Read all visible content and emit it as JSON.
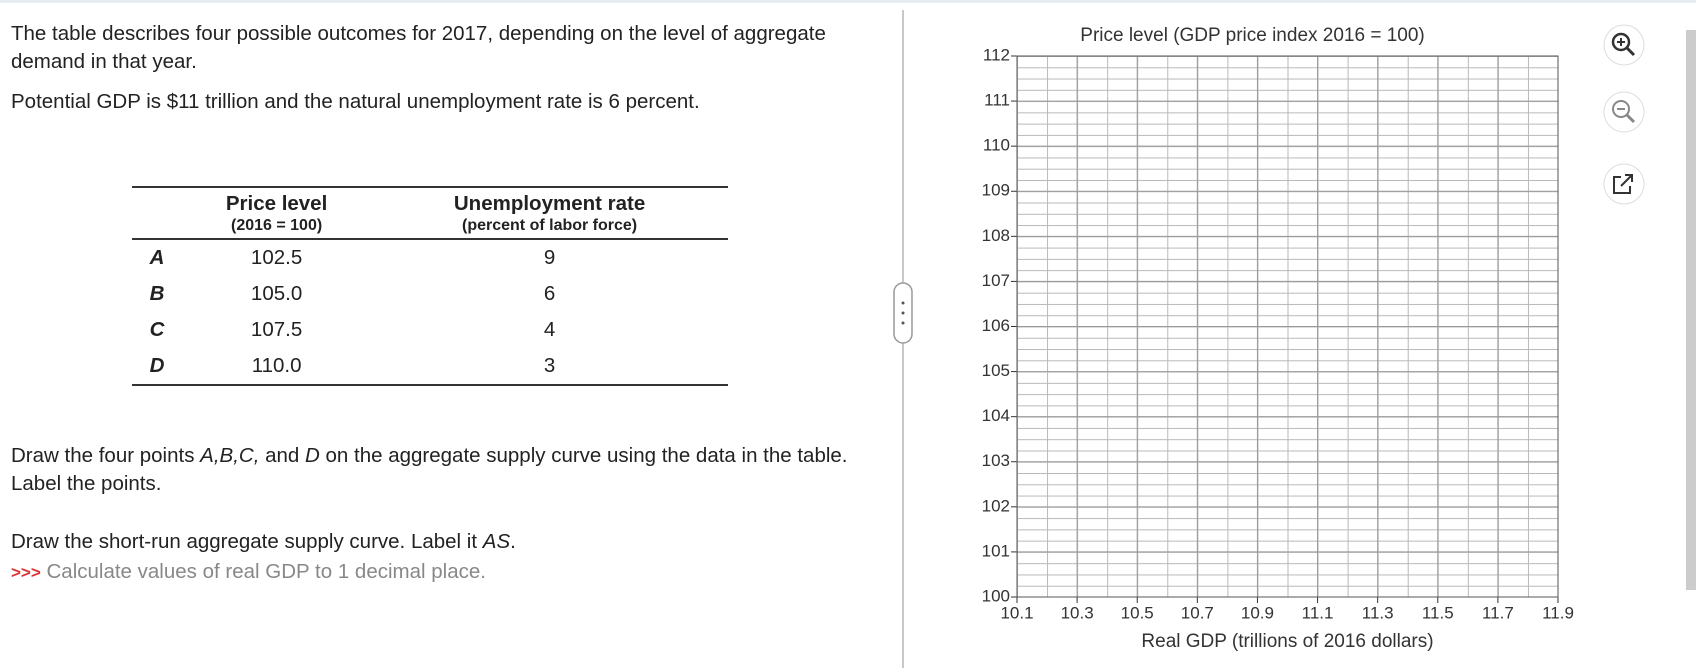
{
  "question": {
    "paragraphs": [
      "The table describes four possible outcomes for 2017, depending on the level of aggregate demand in that year.",
      "Potential GDP is $11 trillion and the natural unemployment rate is 6 percent."
    ],
    "table": {
      "headers": [
        [
          "Price level",
          "(2016 = 100)"
        ],
        [
          "Unemployment rate",
          "(percent of labor force)"
        ]
      ],
      "rows": [
        [
          "A",
          "102.5",
          "9"
        ],
        [
          "B",
          "105.0",
          "6"
        ],
        [
          "C",
          "107.5",
          "4"
        ],
        [
          "D",
          "110.0",
          "3"
        ]
      ]
    },
    "instruction1": [
      "Draw the four points ",
      "A,B,C,",
      " and ",
      "D",
      " on the aggregate supply curve using the data in the table. Label the points."
    ],
    "instruction2": [
      "Draw the short-run aggregate supply curve. Label it ",
      "AS",
      "."
    ],
    "hint": [
      ">>>",
      "Calculate values of real GDP to 1 decimal place."
    ]
  },
  "chart_data": {
    "type": "grid",
    "y_label": "Price level (GDP price index 2016 = 100)",
    "x_label": "Real GDP (trillions of 2016 dollars)",
    "xlim": [
      10.1,
      11.9
    ],
    "xticks": [
      10.1,
      10.3,
      10.5,
      10.7,
      10.9,
      11.1,
      11.3,
      11.5,
      11.7,
      11.9
    ],
    "ylim": [
      100,
      112
    ],
    "yticks": [
      100,
      101,
      102,
      103,
      104,
      105,
      106,
      107,
      108,
      109,
      110,
      111,
      112
    ],
    "grid": true
  }
}
